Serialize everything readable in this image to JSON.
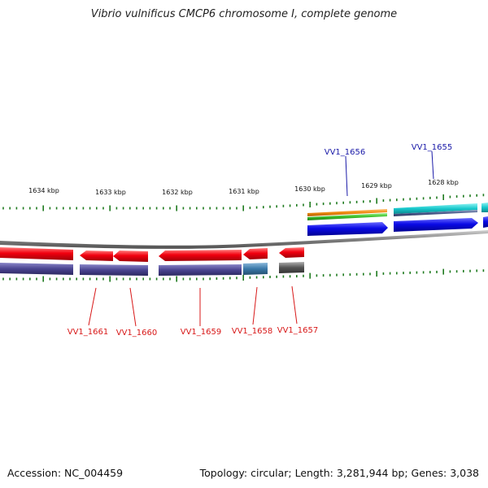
{
  "title": "Vibrio vulnificus CMCP6 chromosome I, complete genome",
  "footer": {
    "accession": "Accession: NC_004459",
    "summary": "Topology: circular; Length: 3,281,944 bp; Genes: 3,038"
  },
  "scale_labels": [
    "1634 kbp",
    "1633 kbp",
    "1632 kbp",
    "1631 kbp",
    "1630 kbp",
    "1629 kbp",
    "1628 kbp"
  ],
  "colors": {
    "forward_gene": "#0a0ae6",
    "reverse_gene": "#f2000f",
    "forward_label": "#1a1aa8",
    "reverse_label": "#d81818",
    "backbone": "#8a8a8a",
    "tick": "#1e7a1e"
  },
  "genes": [
    {
      "name": "VV1_1656",
      "strand": "forward"
    },
    {
      "name": "VV1_1655",
      "strand": "forward"
    },
    {
      "name": "VV1_1661",
      "strand": "reverse"
    },
    {
      "name": "VV1_1660",
      "strand": "reverse"
    },
    {
      "name": "VV1_1659",
      "strand": "reverse"
    },
    {
      "name": "VV1_1658",
      "strand": "reverse"
    },
    {
      "name": "VV1_1657",
      "strand": "reverse"
    }
  ]
}
